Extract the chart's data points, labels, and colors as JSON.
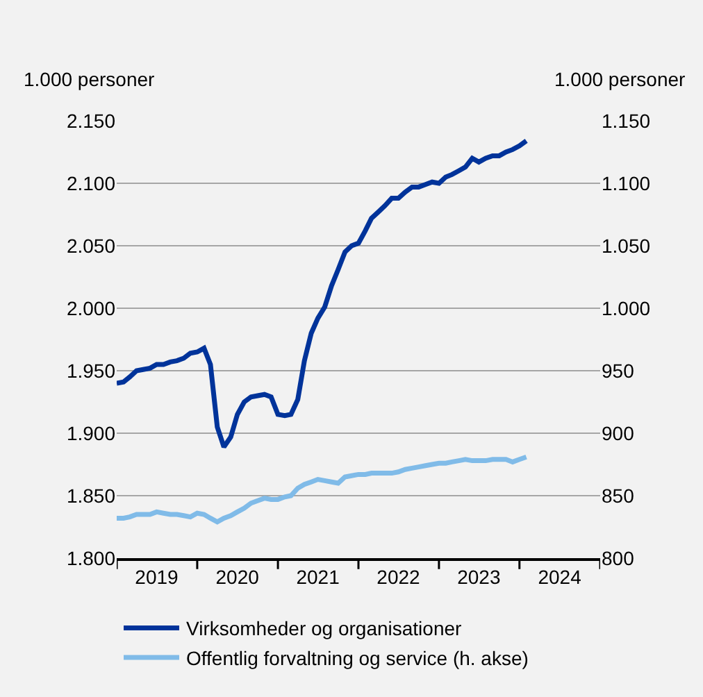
{
  "chart_data": {
    "type": "line",
    "ylabel": "1.000 personer",
    "y2label": "1.000 personer",
    "x": [
      "2019-01",
      "2019-02",
      "2019-03",
      "2019-04",
      "2019-05",
      "2019-06",
      "2019-07",
      "2019-08",
      "2019-09",
      "2019-10",
      "2019-11",
      "2019-12",
      "2020-01",
      "2020-02",
      "2020-03",
      "2020-04",
      "2020-05",
      "2020-06",
      "2020-07",
      "2020-08",
      "2020-09",
      "2020-10",
      "2020-11",
      "2020-12",
      "2021-01",
      "2021-02",
      "2021-03",
      "2021-04",
      "2021-05",
      "2021-06",
      "2021-07",
      "2021-08",
      "2021-09",
      "2021-10",
      "2021-11",
      "2021-12",
      "2022-01",
      "2022-02",
      "2022-03",
      "2022-04",
      "2022-05",
      "2022-06",
      "2022-07",
      "2022-08",
      "2022-09",
      "2022-10",
      "2022-11",
      "2022-12",
      "2023-01",
      "2023-02",
      "2023-03",
      "2023-04",
      "2023-05",
      "2023-06",
      "2023-07",
      "2023-08",
      "2023-09",
      "2023-10",
      "2023-11",
      "2023-12",
      "2024-01",
      "2024-02"
    ],
    "series": [
      {
        "name": "Virksomheder og organisationer",
        "color": "#00339a",
        "values": [
          1940,
          1941,
          1945,
          1950,
          1951,
          1952,
          1955,
          1955,
          1957,
          1958,
          1960,
          1964,
          1965,
          1968,
          1955,
          1905,
          1889,
          1897,
          1915,
          1925,
          1929,
          1930,
          1931,
          1929,
          1915,
          1914,
          1915,
          1927,
          1958,
          1980,
          1992,
          2001,
          2018,
          2031,
          2045,
          2050,
          2052,
          2062,
          2072,
          2077,
          2082,
          2088,
          2088,
          2093,
          2097,
          2097,
          2099,
          2101,
          2100,
          2105,
          2107,
          2110,
          2113,
          2120,
          2117,
          2120,
          2122,
          2122,
          2125,
          2127,
          2130,
          2134
        ]
      },
      {
        "name": "Offentlig forvaltning og service (h. akse)",
        "color": "#80bbe8",
        "axis": "y2",
        "values": [
          832,
          832,
          833,
          835,
          835,
          835,
          837,
          836,
          835,
          835,
          834,
          833,
          836,
          835,
          832,
          829,
          832,
          834,
          837,
          840,
          844,
          846,
          848,
          847,
          847,
          849,
          850,
          856,
          859,
          861,
          863,
          862,
          861,
          860,
          865,
          866,
          867,
          867,
          868,
          868,
          868,
          868,
          869,
          871,
          872,
          873,
          874,
          875,
          876,
          876,
          877,
          878,
          879,
          878,
          878,
          878,
          879,
          879,
          879,
          877,
          879,
          881
        ]
      }
    ],
    "xlim": [
      "2019-01-01",
      "2025-01-01"
    ],
    "xticks": [
      {
        "value": "2019-01-01",
        "label": null
      },
      {
        "value": "2019-07-01",
        "label": "2019"
      },
      {
        "value": "2020-01-01",
        "label": null
      },
      {
        "value": "2020-07-01",
        "label": "2020"
      },
      {
        "value": "2021-01-01",
        "label": null
      },
      {
        "value": "2021-07-01",
        "label": "2021"
      },
      {
        "value": "2022-01-01",
        "label": null
      },
      {
        "value": "2022-07-01",
        "label": "2022"
      },
      {
        "value": "2023-01-01",
        "label": null
      },
      {
        "value": "2023-07-01",
        "label": "2023"
      },
      {
        "value": "2024-01-01",
        "label": null
      },
      {
        "value": "2024-07-01",
        "label": "2024"
      },
      {
        "value": "2025-01-01",
        "label": null
      }
    ],
    "ylim": [
      1800,
      2150
    ],
    "yticks": [
      {
        "value": 1800,
        "label": "1.800"
      },
      {
        "value": 1850,
        "label": "1.850"
      },
      {
        "value": 1900,
        "label": "1.900"
      },
      {
        "value": 1950,
        "label": "1.950"
      },
      {
        "value": 2000,
        "label": "2.000"
      },
      {
        "value": 2050,
        "label": "2.050"
      },
      {
        "value": 2100,
        "label": "2.100"
      },
      {
        "value": 2150,
        "label": "2.150"
      }
    ],
    "y2lim": [
      800,
      1150
    ],
    "y2ticks": [
      800,
      850,
      900,
      950,
      {
        "value": 1000,
        "label": "1.000"
      },
      {
        "value": 1050,
        "label": "1.050"
      },
      {
        "value": 1100,
        "label": "1.100"
      },
      {
        "value": 1150,
        "label": "1.150"
      }
    ],
    "grid": "y",
    "legend": "bottom",
    "marker": "none",
    "line_style": "solid"
  }
}
